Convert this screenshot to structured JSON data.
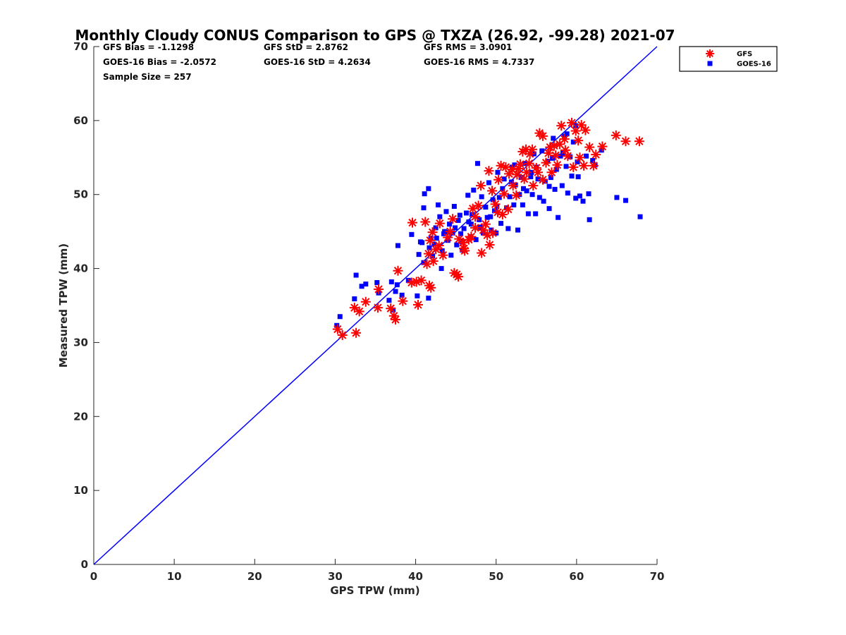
{
  "chart_data": {
    "type": "scatter",
    "title": "Monthly Cloudy CONUS Comparison to GPS @ TXZA (26.92, -99.28) 2021-07",
    "xlabel": "GPS TPW (mm)",
    "ylabel": "Measured TPW (mm)",
    "xlim": [
      0,
      70
    ],
    "ylim": [
      0,
      70
    ],
    "xticks": [
      "0",
      "10",
      "20",
      "30",
      "40",
      "50",
      "60",
      "70"
    ],
    "yticks": [
      "0",
      "10",
      "20",
      "30",
      "40",
      "50",
      "60",
      "70"
    ],
    "grid": false,
    "legend_position": "top-right-outside",
    "stats": {
      "gfs_bias": "GFS Bias = -1.1298",
      "gfs_std": "GFS StD = 2.8762",
      "gfs_rms": "GFS RMS = 3.0901",
      "goes_bias": "GOES-16 Bias = -2.0572",
      "goes_std": "GOES-16 StD = 4.2634",
      "goes_rms": "GOES-16 RMS = 4.7337",
      "sample_size": "Sample Size = 257"
    },
    "reference_line": {
      "type": "one-to-one",
      "from": [
        0,
        0
      ],
      "to": [
        70,
        70
      ],
      "color": "#0000ff"
    },
    "series": [
      {
        "name": "GFS",
        "marker": "asterisk",
        "color": "#ff0000",
        "points": [
          [
            30.3,
            31.8
          ],
          [
            30.9,
            31.0
          ],
          [
            32.6,
            31.3
          ],
          [
            32.4,
            34.7
          ],
          [
            33.0,
            34.2
          ],
          [
            33.8,
            35.5
          ],
          [
            35.3,
            34.7
          ],
          [
            35.4,
            37.2
          ],
          [
            36.9,
            34.6
          ],
          [
            37.3,
            33.6
          ],
          [
            37.5,
            33.1
          ],
          [
            37.8,
            39.7
          ],
          [
            38.4,
            35.6
          ],
          [
            39.5,
            38.1
          ],
          [
            39.6,
            46.2
          ],
          [
            40.1,
            38.2
          ],
          [
            40.3,
            35.1
          ],
          [
            40.7,
            38.4
          ],
          [
            41.4,
            40.6
          ],
          [
            41.6,
            42.0
          ],
          [
            41.7,
            37.7
          ],
          [
            41.9,
            37.4
          ],
          [
            41.2,
            46.3
          ],
          [
            41.8,
            43.8
          ],
          [
            42.1,
            44.9
          ],
          [
            42.5,
            42.6
          ],
          [
            42.9,
            43.1
          ],
          [
            43.4,
            41.8
          ],
          [
            43.0,
            46.1
          ],
          [
            44.0,
            44.2
          ],
          [
            44.8,
            39.4
          ],
          [
            45.3,
            38.9
          ],
          [
            45.1,
            39.2
          ],
          [
            45.9,
            43.5
          ],
          [
            46.1,
            42.4
          ],
          [
            46.6,
            43.9
          ],
          [
            46.9,
            44.3
          ],
          [
            47.1,
            48.1
          ],
          [
            47.4,
            47.0
          ],
          [
            48.2,
            42.1
          ],
          [
            48.4,
            45.2
          ],
          [
            48.1,
            51.2
          ],
          [
            48.7,
            46.0
          ],
          [
            49.1,
            53.2
          ],
          [
            49.2,
            43.2
          ],
          [
            49.6,
            44.8
          ],
          [
            49.9,
            48.7
          ],
          [
            50.2,
            47.6
          ],
          [
            50.3,
            52.0
          ],
          [
            50.6,
            53.9
          ],
          [
            51.0,
            50.1
          ],
          [
            51.2,
            53.7
          ],
          [
            51.5,
            48.0
          ],
          [
            51.6,
            52.8
          ],
          [
            52.1,
            51.2
          ],
          [
            52.0,
            53.4
          ],
          [
            52.5,
            49.9
          ],
          [
            52.8,
            53.5
          ],
          [
            53.0,
            54.1
          ],
          [
            53.3,
            55.8
          ],
          [
            53.5,
            52.1
          ],
          [
            53.8,
            53.0
          ],
          [
            54.2,
            55.5
          ],
          [
            54.5,
            56.1
          ],
          [
            54.6,
            51.2
          ],
          [
            55.0,
            53.6
          ],
          [
            55.4,
            58.3
          ],
          [
            55.8,
            57.9
          ],
          [
            55.8,
            52.0
          ],
          [
            56.2,
            54.3
          ],
          [
            56.5,
            55.6
          ],
          [
            56.9,
            53.0
          ],
          [
            57.2,
            56.6
          ],
          [
            57.6,
            54.0
          ],
          [
            57.9,
            56.8
          ],
          [
            58.1,
            59.3
          ],
          [
            58.5,
            57.5
          ],
          [
            58.9,
            55.2
          ],
          [
            59.4,
            59.7
          ],
          [
            59.6,
            53.7
          ],
          [
            59.9,
            58.6
          ],
          [
            60.2,
            57.3
          ],
          [
            60.4,
            55.0
          ],
          [
            60.6,
            59.4
          ],
          [
            60.9,
            53.9
          ],
          [
            61.1,
            58.7
          ],
          [
            61.6,
            56.4
          ],
          [
            62.1,
            53.9
          ],
          [
            62.4,
            55.4
          ],
          [
            63.2,
            56.5
          ],
          [
            64.9,
            58.0
          ],
          [
            66.1,
            57.2
          ],
          [
            67.8,
            57.2
          ],
          [
            46.0,
            42.7
          ],
          [
            44.3,
            45.0
          ],
          [
            45.4,
            44.0
          ],
          [
            47.8,
            48.5
          ],
          [
            49.5,
            50.5
          ],
          [
            50.8,
            47.3
          ],
          [
            52.6,
            52.7
          ],
          [
            54.1,
            54.2
          ],
          [
            55.2,
            53.0
          ],
          [
            56.7,
            56.4
          ],
          [
            58.6,
            56.0
          ],
          [
            47.4,
            45.5
          ],
          [
            48.9,
            44.5
          ],
          [
            42.2,
            41.0
          ],
          [
            44.6,
            46.7
          ],
          [
            53.7,
            56.1
          ],
          [
            57.4,
            55.3
          ]
        ]
      },
      {
        "name": "GOES-16",
        "marker": "square",
        "color": "#0000ff",
        "points": [
          [
            30.2,
            32.3
          ],
          [
            30.6,
            33.5
          ],
          [
            32.4,
            35.9
          ],
          [
            32.6,
            39.1
          ],
          [
            33.3,
            37.6
          ],
          [
            33.8,
            37.9
          ],
          [
            35.2,
            38.1
          ],
          [
            35.4,
            36.7
          ],
          [
            36.7,
            35.7
          ],
          [
            37.0,
            38.2
          ],
          [
            37.2,
            34.4
          ],
          [
            37.5,
            36.9
          ],
          [
            37.7,
            37.8
          ],
          [
            37.8,
            43.1
          ],
          [
            38.3,
            36.4
          ],
          [
            39.1,
            38.4
          ],
          [
            39.5,
            44.6
          ],
          [
            40.2,
            36.3
          ],
          [
            40.4,
            41.9
          ],
          [
            40.6,
            43.6
          ],
          [
            41.0,
            40.8
          ],
          [
            41.0,
            48.2
          ],
          [
            41.1,
            50.1
          ],
          [
            41.6,
            36.0
          ],
          [
            41.6,
            50.8
          ],
          [
            41.7,
            42.8
          ],
          [
            41.9,
            44.1
          ],
          [
            42.1,
            41.7
          ],
          [
            42.3,
            43.3
          ],
          [
            42.5,
            45.5
          ],
          [
            42.8,
            48.6
          ],
          [
            43.0,
            47.0
          ],
          [
            43.3,
            42.4
          ],
          [
            43.5,
            44.7
          ],
          [
            43.8,
            47.7
          ],
          [
            44.0,
            43.8
          ],
          [
            44.2,
            46.0
          ],
          [
            44.4,
            41.8
          ],
          [
            44.6,
            44.8
          ],
          [
            44.8,
            48.4
          ],
          [
            45.1,
            43.2
          ],
          [
            45.3,
            46.5
          ],
          [
            45.6,
            44.7
          ],
          [
            45.8,
            42.5
          ],
          [
            46.0,
            45.4
          ],
          [
            46.3,
            47.5
          ],
          [
            46.5,
            49.9
          ],
          [
            46.8,
            44.3
          ],
          [
            47.0,
            47.3
          ],
          [
            47.2,
            50.6
          ],
          [
            47.5,
            43.9
          ],
          [
            47.7,
            54.2
          ],
          [
            47.9,
            46.6
          ],
          [
            48.2,
            49.7
          ],
          [
            48.4,
            44.8
          ],
          [
            48.7,
            48.3
          ],
          [
            48.9,
            46.9
          ],
          [
            49.1,
            51.6
          ],
          [
            49.4,
            45.2
          ],
          [
            49.6,
            49.3
          ],
          [
            49.8,
            47.8
          ],
          [
            50.0,
            44.8
          ],
          [
            50.2,
            53.0
          ],
          [
            50.4,
            49.6
          ],
          [
            50.6,
            46.1
          ],
          [
            50.8,
            50.8
          ],
          [
            51.0,
            52.1
          ],
          [
            51.3,
            48.2
          ],
          [
            51.5,
            45.4
          ],
          [
            51.7,
            49.7
          ],
          [
            52.0,
            53.7
          ],
          [
            52.2,
            48.6
          ],
          [
            52.4,
            51.3
          ],
          [
            52.7,
            45.2
          ],
          [
            52.9,
            50.0
          ],
          [
            53.1,
            52.3
          ],
          [
            53.3,
            48.6
          ],
          [
            53.6,
            54.2
          ],
          [
            53.8,
            50.5
          ],
          [
            54.0,
            47.4
          ],
          [
            54.3,
            52.4
          ],
          [
            54.5,
            50.0
          ],
          [
            54.7,
            55.5
          ],
          [
            54.9,
            47.4
          ],
          [
            55.2,
            52.1
          ],
          [
            55.4,
            49.6
          ],
          [
            55.7,
            55.9
          ],
          [
            55.9,
            49.1
          ],
          [
            56.1,
            51.8
          ],
          [
            56.4,
            54.5
          ],
          [
            56.6,
            48.1
          ],
          [
            56.8,
            52.3
          ],
          [
            57.1,
            57.6
          ],
          [
            57.3,
            50.7
          ],
          [
            57.5,
            53.4
          ],
          [
            57.7,
            46.9
          ],
          [
            58.0,
            55.2
          ],
          [
            58.2,
            51.2
          ],
          [
            58.5,
            57.9
          ],
          [
            58.7,
            53.8
          ],
          [
            58.9,
            50.2
          ],
          [
            59.2,
            55.1
          ],
          [
            59.4,
            52.5
          ],
          [
            59.6,
            57.1
          ],
          [
            59.9,
            49.5
          ],
          [
            60.1,
            54.4
          ],
          [
            60.4,
            49.8
          ],
          [
            60.8,
            49.1
          ],
          [
            61.5,
            50.1
          ],
          [
            61.6,
            46.6
          ],
          [
            62.0,
            54.6
          ],
          [
            63.1,
            56.0
          ],
          [
            65.0,
            49.6
          ],
          [
            66.1,
            49.2
          ],
          [
            67.9,
            47.0
          ],
          [
            44.9,
            45.5
          ],
          [
            45.8,
            43.6
          ],
          [
            46.6,
            46.3
          ],
          [
            43.6,
            45.0
          ],
          [
            42.6,
            44.1
          ],
          [
            48.0,
            45.6
          ],
          [
            50.1,
            48.4
          ],
          [
            51.9,
            51.7
          ],
          [
            53.4,
            50.8
          ],
          [
            55.0,
            53.7
          ],
          [
            57.0,
            54.9
          ],
          [
            58.8,
            58.2
          ],
          [
            59.9,
            59.3
          ],
          [
            40.8,
            43.5
          ],
          [
            43.2,
            40.0
          ],
          [
            44.0,
            44.9
          ],
          [
            45.5,
            47.2
          ],
          [
            46.9,
            46.0
          ],
          [
            49.3,
            47.0
          ],
          [
            52.3,
            54.0
          ],
          [
            54.4,
            53.0
          ],
          [
            56.6,
            51.1
          ],
          [
            58.3,
            55.6
          ],
          [
            60.2,
            52.4
          ],
          [
            61.2,
            55.2
          ],
          [
            62.3,
            54.0
          ]
        ]
      }
    ]
  }
}
